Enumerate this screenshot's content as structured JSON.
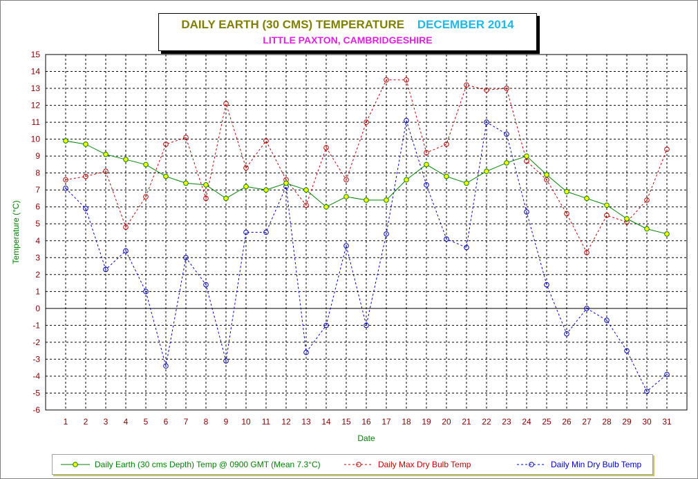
{
  "title": {
    "main": "DAILY EARTH (30 CMS) TEMPERATURE",
    "month": "DECEMBER 2014",
    "subtitle": "LITTLE PAXTON, CAMBRIDGESHIRE"
  },
  "colors": {
    "earth": "#008000",
    "earth_marker": "#ffff00",
    "max": "#c00000",
    "min": "#0000c0",
    "axis_label": "#008000",
    "tick_label": "#800000",
    "grid": "#000000"
  },
  "chart_data": {
    "type": "line",
    "xlabel": "Date",
    "ylabel": "Temperature (°C)",
    "x": [
      1,
      2,
      3,
      4,
      5,
      6,
      7,
      8,
      9,
      10,
      11,
      12,
      13,
      14,
      15,
      16,
      17,
      18,
      19,
      20,
      21,
      22,
      23,
      24,
      25,
      26,
      27,
      28,
      29,
      30,
      31
    ],
    "xlim": [
      0,
      32
    ],
    "ylim": [
      -6,
      15
    ],
    "yticks": [
      -6,
      -5,
      -4,
      -3,
      -2,
      -1,
      0,
      1,
      2,
      3,
      4,
      5,
      6,
      7,
      8,
      9,
      10,
      11,
      12,
      13,
      14,
      15
    ],
    "grid": true,
    "legend_position": "bottom",
    "series": [
      {
        "name": "Daily Earth (30 cms Depth) Temp @ 0900 GMT (Mean 7.3°C)",
        "style": "solid",
        "values": [
          9.9,
          9.7,
          9.1,
          8.8,
          8.5,
          7.8,
          7.4,
          7.3,
          6.5,
          7.2,
          7.0,
          7.4,
          7.0,
          6.0,
          6.6,
          6.4,
          6.4,
          7.6,
          8.5,
          7.8,
          7.4,
          8.1,
          8.6,
          9.0,
          7.9,
          6.9,
          6.5,
          6.1,
          5.3,
          4.7,
          4.4
        ]
      },
      {
        "name": "Daily Max Dry Bulb Temp",
        "style": "dashed",
        "values": [
          7.6,
          7.8,
          8.1,
          4.8,
          6.6,
          9.7,
          10.1,
          6.5,
          12.1,
          8.3,
          9.9,
          7.6,
          6.1,
          9.5,
          7.6,
          11.0,
          13.5,
          13.5,
          9.2,
          9.7,
          13.2,
          12.9,
          13.0,
          8.7,
          7.6,
          5.6,
          3.3,
          5.5,
          5.1,
          6.4,
          9.4
        ]
      },
      {
        "name": "Daily Min Dry Bulb Temp",
        "style": "dashed",
        "values": [
          7.1,
          5.9,
          2.3,
          3.4,
          1.0,
          -3.4,
          3.0,
          1.4,
          -3.1,
          4.5,
          4.5,
          7.2,
          -2.6,
          -1.0,
          3.7,
          -1.0,
          4.4,
          11.1,
          7.3,
          4.1,
          3.6,
          11.0,
          10.3,
          5.7,
          1.4,
          -1.5,
          0.0,
          -0.7,
          -2.5,
          -4.9,
          -3.9
        ]
      }
    ]
  }
}
